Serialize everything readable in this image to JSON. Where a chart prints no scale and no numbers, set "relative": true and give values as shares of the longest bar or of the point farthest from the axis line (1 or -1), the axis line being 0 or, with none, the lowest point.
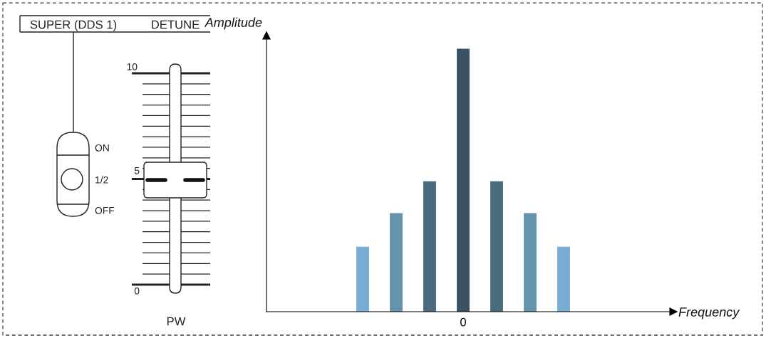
{
  "chart_data": {
    "type": "bar",
    "relative": true,
    "categories": [
      null,
      null,
      null,
      "0",
      null,
      null,
      null
    ],
    "values": [
      0.247,
      0.375,
      0.496,
      1,
      0.496,
      0.375,
      0.247
    ],
    "colors": [
      "#79acd3",
      "#6593ae",
      "#4a6b7e",
      "#3a5263",
      "#4a6b7e",
      "#6593ae",
      "#79acd3"
    ],
    "annotations": [
      "SUPER (DDS 1)",
      "DETUNE",
      "ON",
      "1/2",
      "OFF",
      "10",
      "5",
      "0",
      "PW",
      "Amplitude",
      "Frequency"
    ]
  }
}
